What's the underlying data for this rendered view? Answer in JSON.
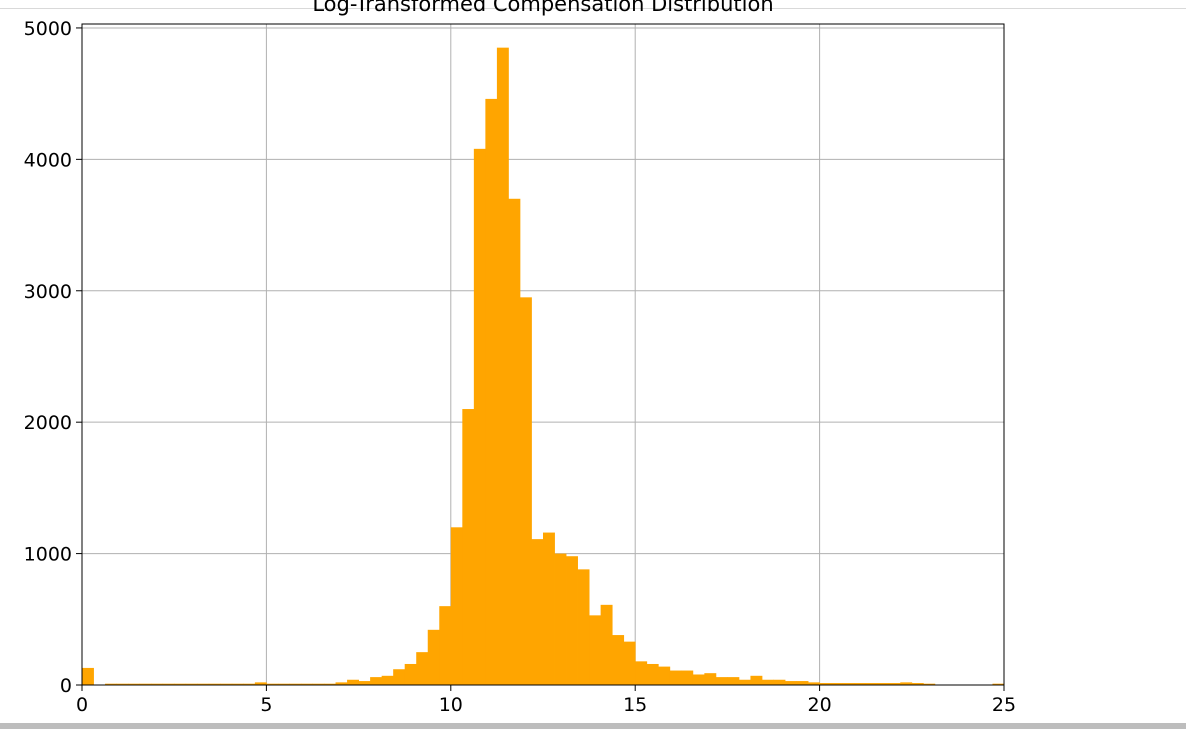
{
  "chart_data": {
    "type": "bar",
    "title": "Log-Transformed Compensation Distribution",
    "xlabel": "",
    "ylabel": "",
    "xlim": [
      0,
      25
    ],
    "ylim": [
      0,
      5100
    ],
    "grid": true,
    "bar_color": "#ffa500",
    "bin_width": 0.3125,
    "bins_start": [
      0,
      0.3125,
      0.625,
      0.9375,
      1.25,
      1.5625,
      1.875,
      2.1875,
      2.5,
      2.8125,
      3.125,
      3.4375,
      3.75,
      4.0625,
      4.375,
      4.6875,
      5,
      5.3125,
      5.625,
      5.9375,
      6.25,
      6.5625,
      6.875,
      7.1875,
      7.5,
      7.8125,
      8.125,
      8.4375,
      8.75,
      9.0625,
      9.375,
      9.6875,
      10,
      10.3125,
      10.625,
      10.9375,
      11.25,
      11.5625,
      11.875,
      12.1875,
      12.5,
      12.8125,
      13.125,
      13.4375,
      13.75,
      14.0625,
      14.375,
      14.6875,
      15,
      15.3125,
      15.625,
      15.9375,
      16.25,
      16.5625,
      16.875,
      17.1875,
      17.5,
      17.8125,
      18.125,
      18.4375,
      18.75,
      19.0625,
      19.375,
      19.6875,
      20,
      20.3125,
      20.625,
      20.9375,
      21.25,
      21.5625,
      21.875,
      22.1875,
      22.5,
      22.8125,
      23.125,
      23.4375,
      23.75,
      24.0625,
      24.375,
      24.6875
    ],
    "counts": [
      130,
      0,
      10,
      10,
      10,
      10,
      10,
      10,
      10,
      10,
      10,
      10,
      10,
      10,
      10,
      20,
      10,
      10,
      10,
      10,
      10,
      10,
      20,
      40,
      30,
      60,
      70,
      120,
      160,
      250,
      420,
      600,
      1200,
      2100,
      4080,
      4460,
      4850,
      3700,
      2950,
      1110,
      1160,
      1000,
      980,
      880,
      530,
      610,
      380,
      330,
      180,
      160,
      140,
      110,
      110,
      80,
      90,
      60,
      60,
      40,
      70,
      40,
      40,
      30,
      30,
      20,
      15,
      15,
      15,
      15,
      15,
      15,
      15,
      20,
      15,
      10,
      0,
      0,
      0,
      0,
      0,
      10
    ],
    "xticks": [
      0,
      5,
      10,
      15,
      20,
      25
    ],
    "yticks": [
      0,
      1000,
      2000,
      3000,
      4000,
      5000
    ]
  }
}
